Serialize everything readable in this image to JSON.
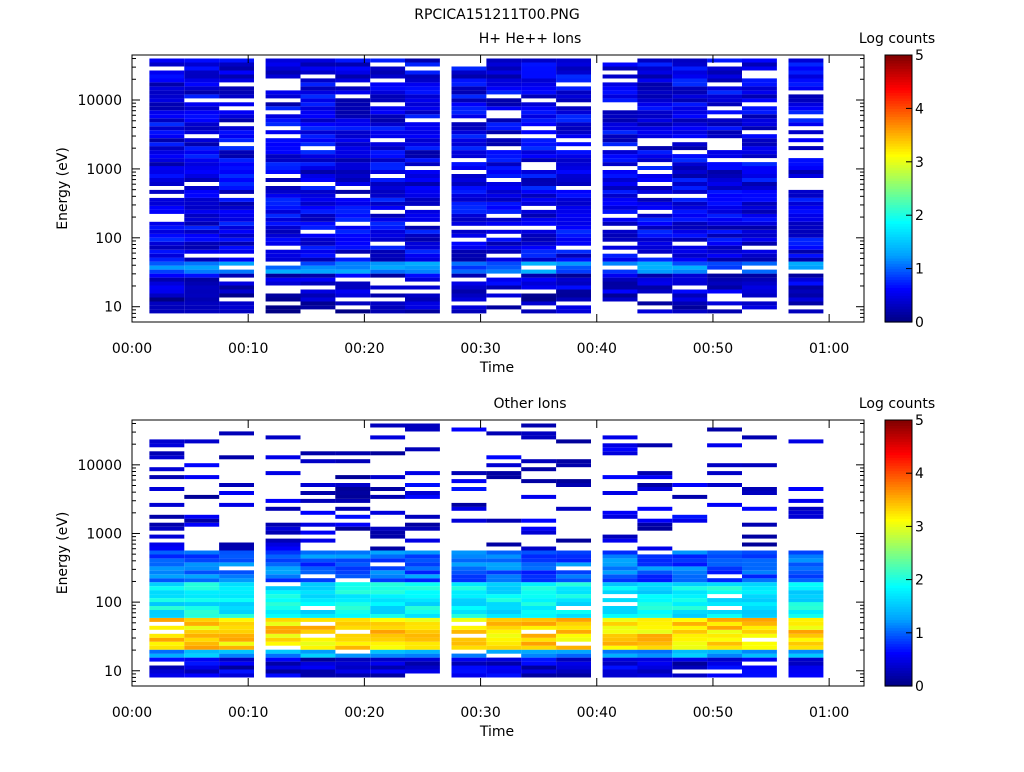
{
  "figure_title": "RPCICA151211T00.PNG",
  "colorscale": [
    "#000080",
    "#0000ff",
    "#00a0ff",
    "#00ffff",
    "#80ff80",
    "#ffff00",
    "#ff8000",
    "#ff0000",
    "#800000"
  ],
  "chart_data": [
    {
      "type": "heatmap",
      "title": "H+ He++ Ions",
      "xlabel": "Time",
      "ylabel": "Energy (eV)",
      "y_scale": "log",
      "ylim": [
        6,
        45000
      ],
      "xlim": [
        "00:00",
        "01:03"
      ],
      "x_ticks": [
        "00:00",
        "00:10",
        "00:20",
        "00:30",
        "00:40",
        "00:50",
        "01:00"
      ],
      "y_ticks": [
        "10",
        "100",
        "1000",
        "10000"
      ],
      "colorbar": {
        "label": "Log counts",
        "range": [
          0,
          5
        ],
        "ticks": [
          "0",
          "1",
          "2",
          "3",
          "4",
          "5"
        ]
      },
      "time_bins": [
        "00:03",
        "00:06",
        "00:09",
        "00:13",
        "00:16",
        "00:19",
        "00:22",
        "00:25",
        "00:29",
        "00:32",
        "00:35",
        "00:38",
        "00:42",
        "00:45",
        "00:48",
        "00:51",
        "00:54",
        "00:58"
      ],
      "energy_range_eV": [
        8,
        40000
      ],
      "values_summary": [
        {
          "energy_band": "8-15",
          "log_counts": 0.2
        },
        {
          "energy_band": "15-30",
          "log_counts": 0.4
        },
        {
          "energy_band": "30-45",
          "log_counts": 1.1
        },
        {
          "energy_band": "45-300",
          "log_counts": 0.5
        },
        {
          "energy_band": "300-40000",
          "log_counts": 0.5
        }
      ]
    },
    {
      "type": "heatmap",
      "title": "Other Ions",
      "xlabel": "Time",
      "ylabel": "Energy (eV)",
      "y_scale": "log",
      "ylim": [
        6,
        45000
      ],
      "xlim": [
        "00:00",
        "01:03"
      ],
      "x_ticks": [
        "00:00",
        "00:10",
        "00:20",
        "00:30",
        "00:40",
        "00:50",
        "01:00"
      ],
      "y_ticks": [
        "10",
        "100",
        "1000",
        "10000"
      ],
      "colorbar": {
        "label": "Log counts",
        "range": [
          0,
          5
        ],
        "ticks": [
          "0",
          "1",
          "2",
          "3",
          "4",
          "5"
        ]
      },
      "time_bins": [
        "00:03",
        "00:06",
        "00:09",
        "00:13",
        "00:16",
        "00:19",
        "00:22",
        "00:25",
        "00:29",
        "00:32",
        "00:35",
        "00:38",
        "00:42",
        "00:45",
        "00:48",
        "00:51",
        "00:54",
        "00:58"
      ],
      "energy_range_eV": [
        8,
        40000
      ],
      "values_summary": [
        {
          "energy_band": "8-15",
          "log_counts": 0.4
        },
        {
          "energy_band": "15-20",
          "log_counts": 1.3
        },
        {
          "energy_band": "20-60",
          "log_counts": 3.3
        },
        {
          "energy_band": "60-200",
          "log_counts": 1.8
        },
        {
          "energy_band": "200-600",
          "log_counts": 1.0
        },
        {
          "energy_band": "600-40000",
          "log_counts": 0.4
        }
      ]
    }
  ]
}
